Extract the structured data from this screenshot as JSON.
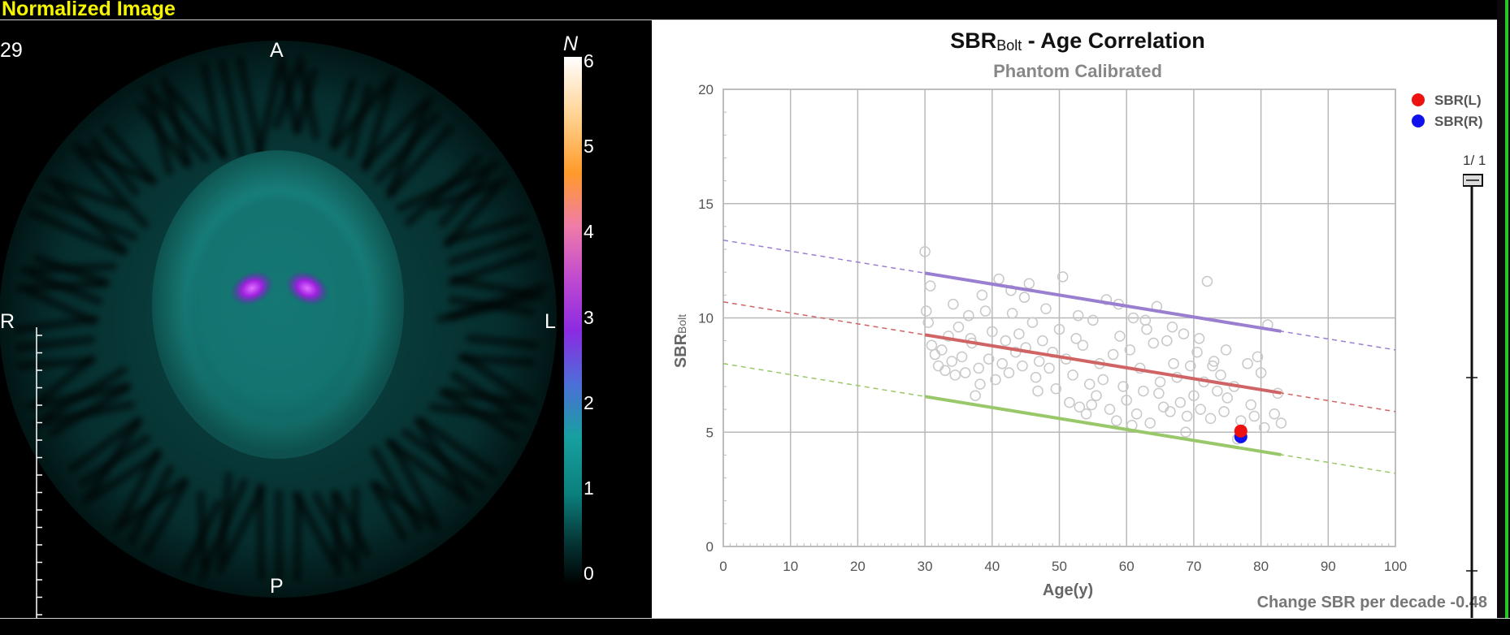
{
  "header": {
    "title": "Normalized Image"
  },
  "image_view": {
    "slice_number": "29",
    "orientation": {
      "anterior": "A",
      "posterior": "P",
      "right": "R",
      "left": "L"
    },
    "colorbar": {
      "label": "N",
      "ticks": [
        "6",
        "5",
        "4",
        "3",
        "2",
        "1",
        "0"
      ]
    }
  },
  "chart_data": {
    "type": "scatter",
    "title_main": "SBR",
    "title_sub": "Bolt",
    "title_rest": " - Age Correlation",
    "subtitle": "Phantom Calibrated",
    "xlabel": "Age(y)",
    "ylabel_main": "SBR",
    "ylabel_sub": "Bolt",
    "xlim": [
      0,
      100
    ],
    "ylim": [
      0,
      20
    ],
    "xticks": [
      "0",
      "10",
      "20",
      "30",
      "40",
      "50",
      "60",
      "70",
      "80",
      "90",
      "100"
    ],
    "yticks": [
      "0",
      "5",
      "10",
      "15",
      "20"
    ],
    "grid": true,
    "legend": [
      {
        "name": "SBR(L)",
        "color": "#ee1111"
      },
      {
        "name": "SBR(R)",
        "color": "#1111ee"
      }
    ],
    "legend_position": "top-right",
    "patient": [
      {
        "name": "SBR(L)",
        "x": 77,
        "y": 5.05,
        "color": "#ee1111"
      },
      {
        "name": "SBR(R)",
        "x": 77,
        "y": 4.8,
        "color": "#1111ee"
      }
    ],
    "regression_lines": [
      {
        "color": "#9a7fd0",
        "start": [
          0,
          13.4
        ],
        "end": [
          100,
          8.6
        ],
        "solid_range": [
          30,
          83
        ]
      },
      {
        "color": "#d06464",
        "start": [
          0,
          10.7
        ],
        "end": [
          100,
          5.9
        ],
        "solid_range": [
          30,
          83
        ]
      },
      {
        "color": "#99c86a",
        "start": [
          0,
          8.0
        ],
        "end": [
          100,
          3.2
        ],
        "solid_range": [
          30,
          83
        ]
      }
    ],
    "reference_points": [
      [
        30,
        12.9
      ],
      [
        30.2,
        10.3
      ],
      [
        30.5,
        9.8
      ],
      [
        31,
        8.8
      ],
      [
        31.5,
        8.4
      ],
      [
        32,
        7.9
      ],
      [
        32.5,
        8.6
      ],
      [
        33,
        7.7
      ],
      [
        33.5,
        9.2
      ],
      [
        34,
        8.1
      ],
      [
        34.5,
        7.5
      ],
      [
        35,
        9.6
      ],
      [
        35.5,
        8.3
      ],
      [
        36,
        7.6
      ],
      [
        36.5,
        10.1
      ],
      [
        37,
        8.9
      ],
      [
        37.5,
        6.6
      ],
      [
        38,
        7.8
      ],
      [
        38.5,
        11.0
      ],
      [
        39,
        10.3
      ],
      [
        39.5,
        8.2
      ],
      [
        40,
        9.4
      ],
      [
        40.5,
        7.3
      ],
      [
        41,
        11.7
      ],
      [
        41.5,
        8.0
      ],
      [
        42,
        9.0
      ],
      [
        42.5,
        7.6
      ],
      [
        43,
        10.2
      ],
      [
        43.5,
        8.5
      ],
      [
        44,
        9.3
      ],
      [
        44.5,
        7.9
      ],
      [
        45,
        8.7
      ],
      [
        45.5,
        11.5
      ],
      [
        46,
        9.8
      ],
      [
        46.5,
        7.4
      ],
      [
        47,
        8.1
      ],
      [
        47.5,
        9.0
      ],
      [
        48,
        10.4
      ],
      [
        48.5,
        7.8
      ],
      [
        49,
        8.5
      ],
      [
        49.5,
        6.9
      ],
      [
        50,
        9.5
      ],
      [
        50.5,
        11.8
      ],
      [
        51,
        8.2
      ],
      [
        51.5,
        6.3
      ],
      [
        52,
        7.5
      ],
      [
        52.5,
        9.1
      ],
      [
        53,
        6.1
      ],
      [
        53.5,
        8.8
      ],
      [
        54,
        5.8
      ],
      [
        54.5,
        7.1
      ],
      [
        55,
        9.9
      ],
      [
        55.5,
        6.6
      ],
      [
        56,
        8.0
      ],
      [
        56.5,
        7.3
      ],
      [
        57,
        10.8
      ],
      [
        57.5,
        6.0
      ],
      [
        58,
        8.4
      ],
      [
        58.5,
        5.5
      ],
      [
        59,
        9.2
      ],
      [
        59.5,
        7.0
      ],
      [
        60,
        6.4
      ],
      [
        60.5,
        8.6
      ],
      [
        61,
        10.0
      ],
      [
        61.5,
        5.8
      ],
      [
        62,
        7.8
      ],
      [
        62.5,
        6.8
      ],
      [
        63,
        9.5
      ],
      [
        63.5,
        5.4
      ],
      [
        64,
        8.9
      ],
      [
        64.5,
        10.5
      ],
      [
        65,
        7.2
      ],
      [
        65.5,
        6.1
      ],
      [
        66,
        9.0
      ],
      [
        66.5,
        5.9
      ],
      [
        67,
        8.0
      ],
      [
        67.5,
        7.4
      ],
      [
        68,
        6.3
      ],
      [
        68.5,
        9.3
      ],
      [
        69,
        5.7
      ],
      [
        69.5,
        7.9
      ],
      [
        70,
        6.6
      ],
      [
        70.5,
        8.5
      ],
      [
        71,
        6.0
      ],
      [
        71.5,
        7.2
      ],
      [
        72,
        11.6
      ],
      [
        72.5,
        5.6
      ],
      [
        73,
        8.1
      ],
      [
        73.5,
        6.8
      ],
      [
        74,
        7.5
      ],
      [
        74.5,
        5.9
      ],
      [
        75,
        6.5
      ],
      [
        76,
        7.0
      ],
      [
        77,
        5.5
      ],
      [
        78,
        8.0
      ],
      [
        78.5,
        6.2
      ],
      [
        79,
        5.7
      ],
      [
        80,
        7.6
      ],
      [
        80.5,
        5.2
      ],
      [
        81,
        9.7
      ],
      [
        82,
        5.8
      ],
      [
        82.5,
        6.7
      ],
      [
        83,
        5.4
      ],
      [
        30.8,
        11.4
      ],
      [
        34.2,
        10.6
      ],
      [
        36.8,
        9.1
      ],
      [
        42.8,
        11.2
      ],
      [
        44.8,
        10.9
      ],
      [
        52.8,
        10.1
      ],
      [
        58.8,
        10.6
      ],
      [
        62.8,
        9.9
      ],
      [
        66.8,
        9.6
      ],
      [
        70.8,
        9.1
      ],
      [
        74.8,
        8.6
      ],
      [
        79.5,
        8.3
      ],
      [
        38.2,
        7.1
      ],
      [
        46.8,
        6.8
      ],
      [
        54.8,
        6.2
      ],
      [
        60.8,
        5.3
      ],
      [
        68.8,
        5.0
      ],
      [
        76.5,
        4.7
      ],
      [
        72.8,
        7.9
      ],
      [
        64.8,
        6.7
      ]
    ],
    "annotation": "Change SBR per decade -0.48"
  },
  "slider": {
    "count": "1/  1"
  },
  "colors": {
    "top_title": "#f5f500",
    "panel_border": "#d0d0d0",
    "edge_accent": "#29c429"
  }
}
